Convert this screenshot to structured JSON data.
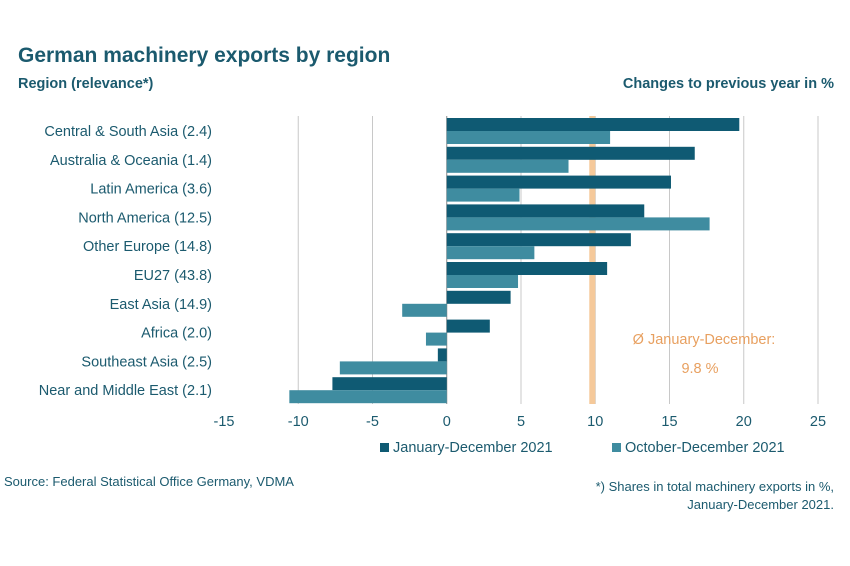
{
  "header": {
    "title": "German machinery exports by region",
    "subtitle_left": "Region (relevance*)",
    "subtitle_right": "Changes to previous year in %"
  },
  "footer": {
    "source": "Source: Federal Statistical Office Germany, VDMA",
    "footnote_line1": "*) Shares in total machinery exports in %,",
    "footnote_line2": "January-December 2021."
  },
  "annotation": {
    "line1": "Ø January-December:",
    "line2": "9.8 %",
    "value": 9.8,
    "color": "#f5c99a"
  },
  "chart_data": {
    "type": "bar",
    "orientation": "horizontal",
    "title": "German machinery exports by region",
    "xlabel": "",
    "ylabel": "Region (relevance*)",
    "xlim": [
      -15,
      25
    ],
    "xticks": [
      -15,
      -10,
      -5,
      0,
      5,
      10,
      15,
      20,
      25
    ],
    "grid": true,
    "legend_position": "bottom",
    "categories": [
      "Central & South Asia (2.4)",
      "Australia & Oceania (1.4)",
      "Latin America (3.6)",
      "North America (12.5)",
      "Other Europe (14.8)",
      "EU27 (43.8)",
      "East Asia (14.9)",
      "Africa (2.0)",
      "Southeast Asia (2.5)",
      "Near and Middle East (2.1)"
    ],
    "series": [
      {
        "name": "January-December 2021",
        "color": "#0f5a73",
        "values": [
          19.7,
          16.7,
          15.1,
          13.3,
          12.4,
          10.8,
          4.3,
          2.9,
          -0.6,
          -7.7
        ]
      },
      {
        "name": "October-December 2021",
        "color": "#3f8ca0",
        "values": [
          11.0,
          8.2,
          4.9,
          17.7,
          5.9,
          4.8,
          -3.0,
          -1.4,
          -7.2,
          -10.6
        ]
      }
    ]
  }
}
